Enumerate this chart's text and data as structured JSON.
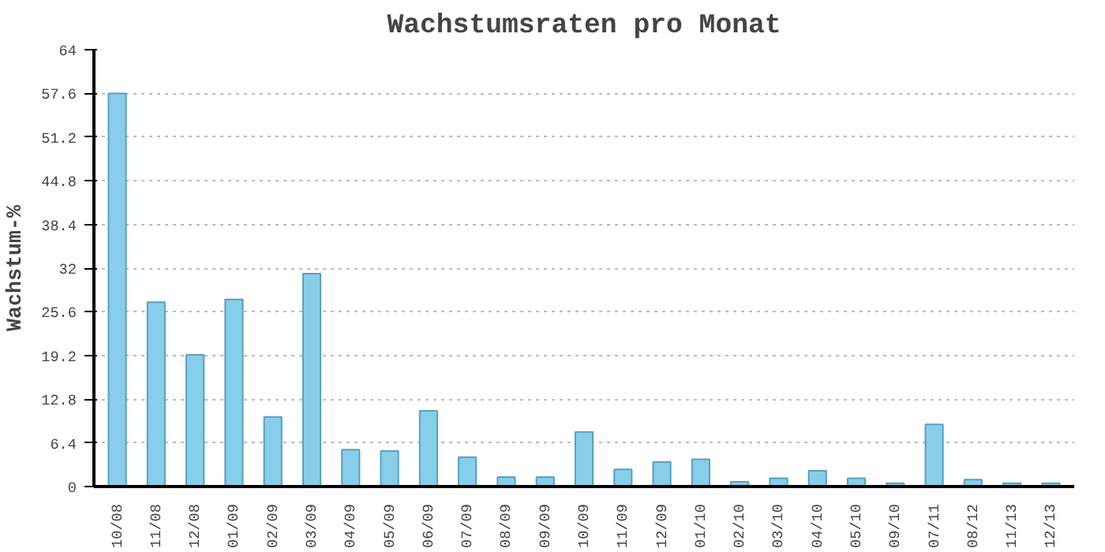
{
  "chart_data": {
    "type": "bar",
    "title": "Wachstumsraten pro Monat",
    "ylabel": "Wachstum-%",
    "categories": [
      "10/08",
      "11/08",
      "12/08",
      "01/09",
      "02/09",
      "03/09",
      "04/09",
      "05/09",
      "06/09",
      "07/09",
      "08/09",
      "09/09",
      "10/09",
      "11/09",
      "12/09",
      "01/10",
      "02/10",
      "03/10",
      "04/10",
      "05/10",
      "09/10",
      "07/11",
      "08/12",
      "11/13",
      "12/13"
    ],
    "values": [
      57.6,
      27.0,
      19.3,
      27.4,
      10.2,
      31.2,
      5.4,
      5.2,
      11.1,
      4.3,
      1.4,
      1.4,
      8.0,
      2.5,
      3.6,
      4.0,
      0.7,
      1.2,
      2.3,
      1.2,
      0.5,
      9.1,
      1.0,
      0.5,
      0.5
    ],
    "color": "#87ceeb",
    "ylim": [
      0,
      64
    ],
    "yticks": [
      0,
      6.4,
      12.8,
      19.2,
      25.6,
      32,
      38.4,
      44.8,
      51.2,
      57.6,
      64
    ],
    "grid": "y"
  }
}
